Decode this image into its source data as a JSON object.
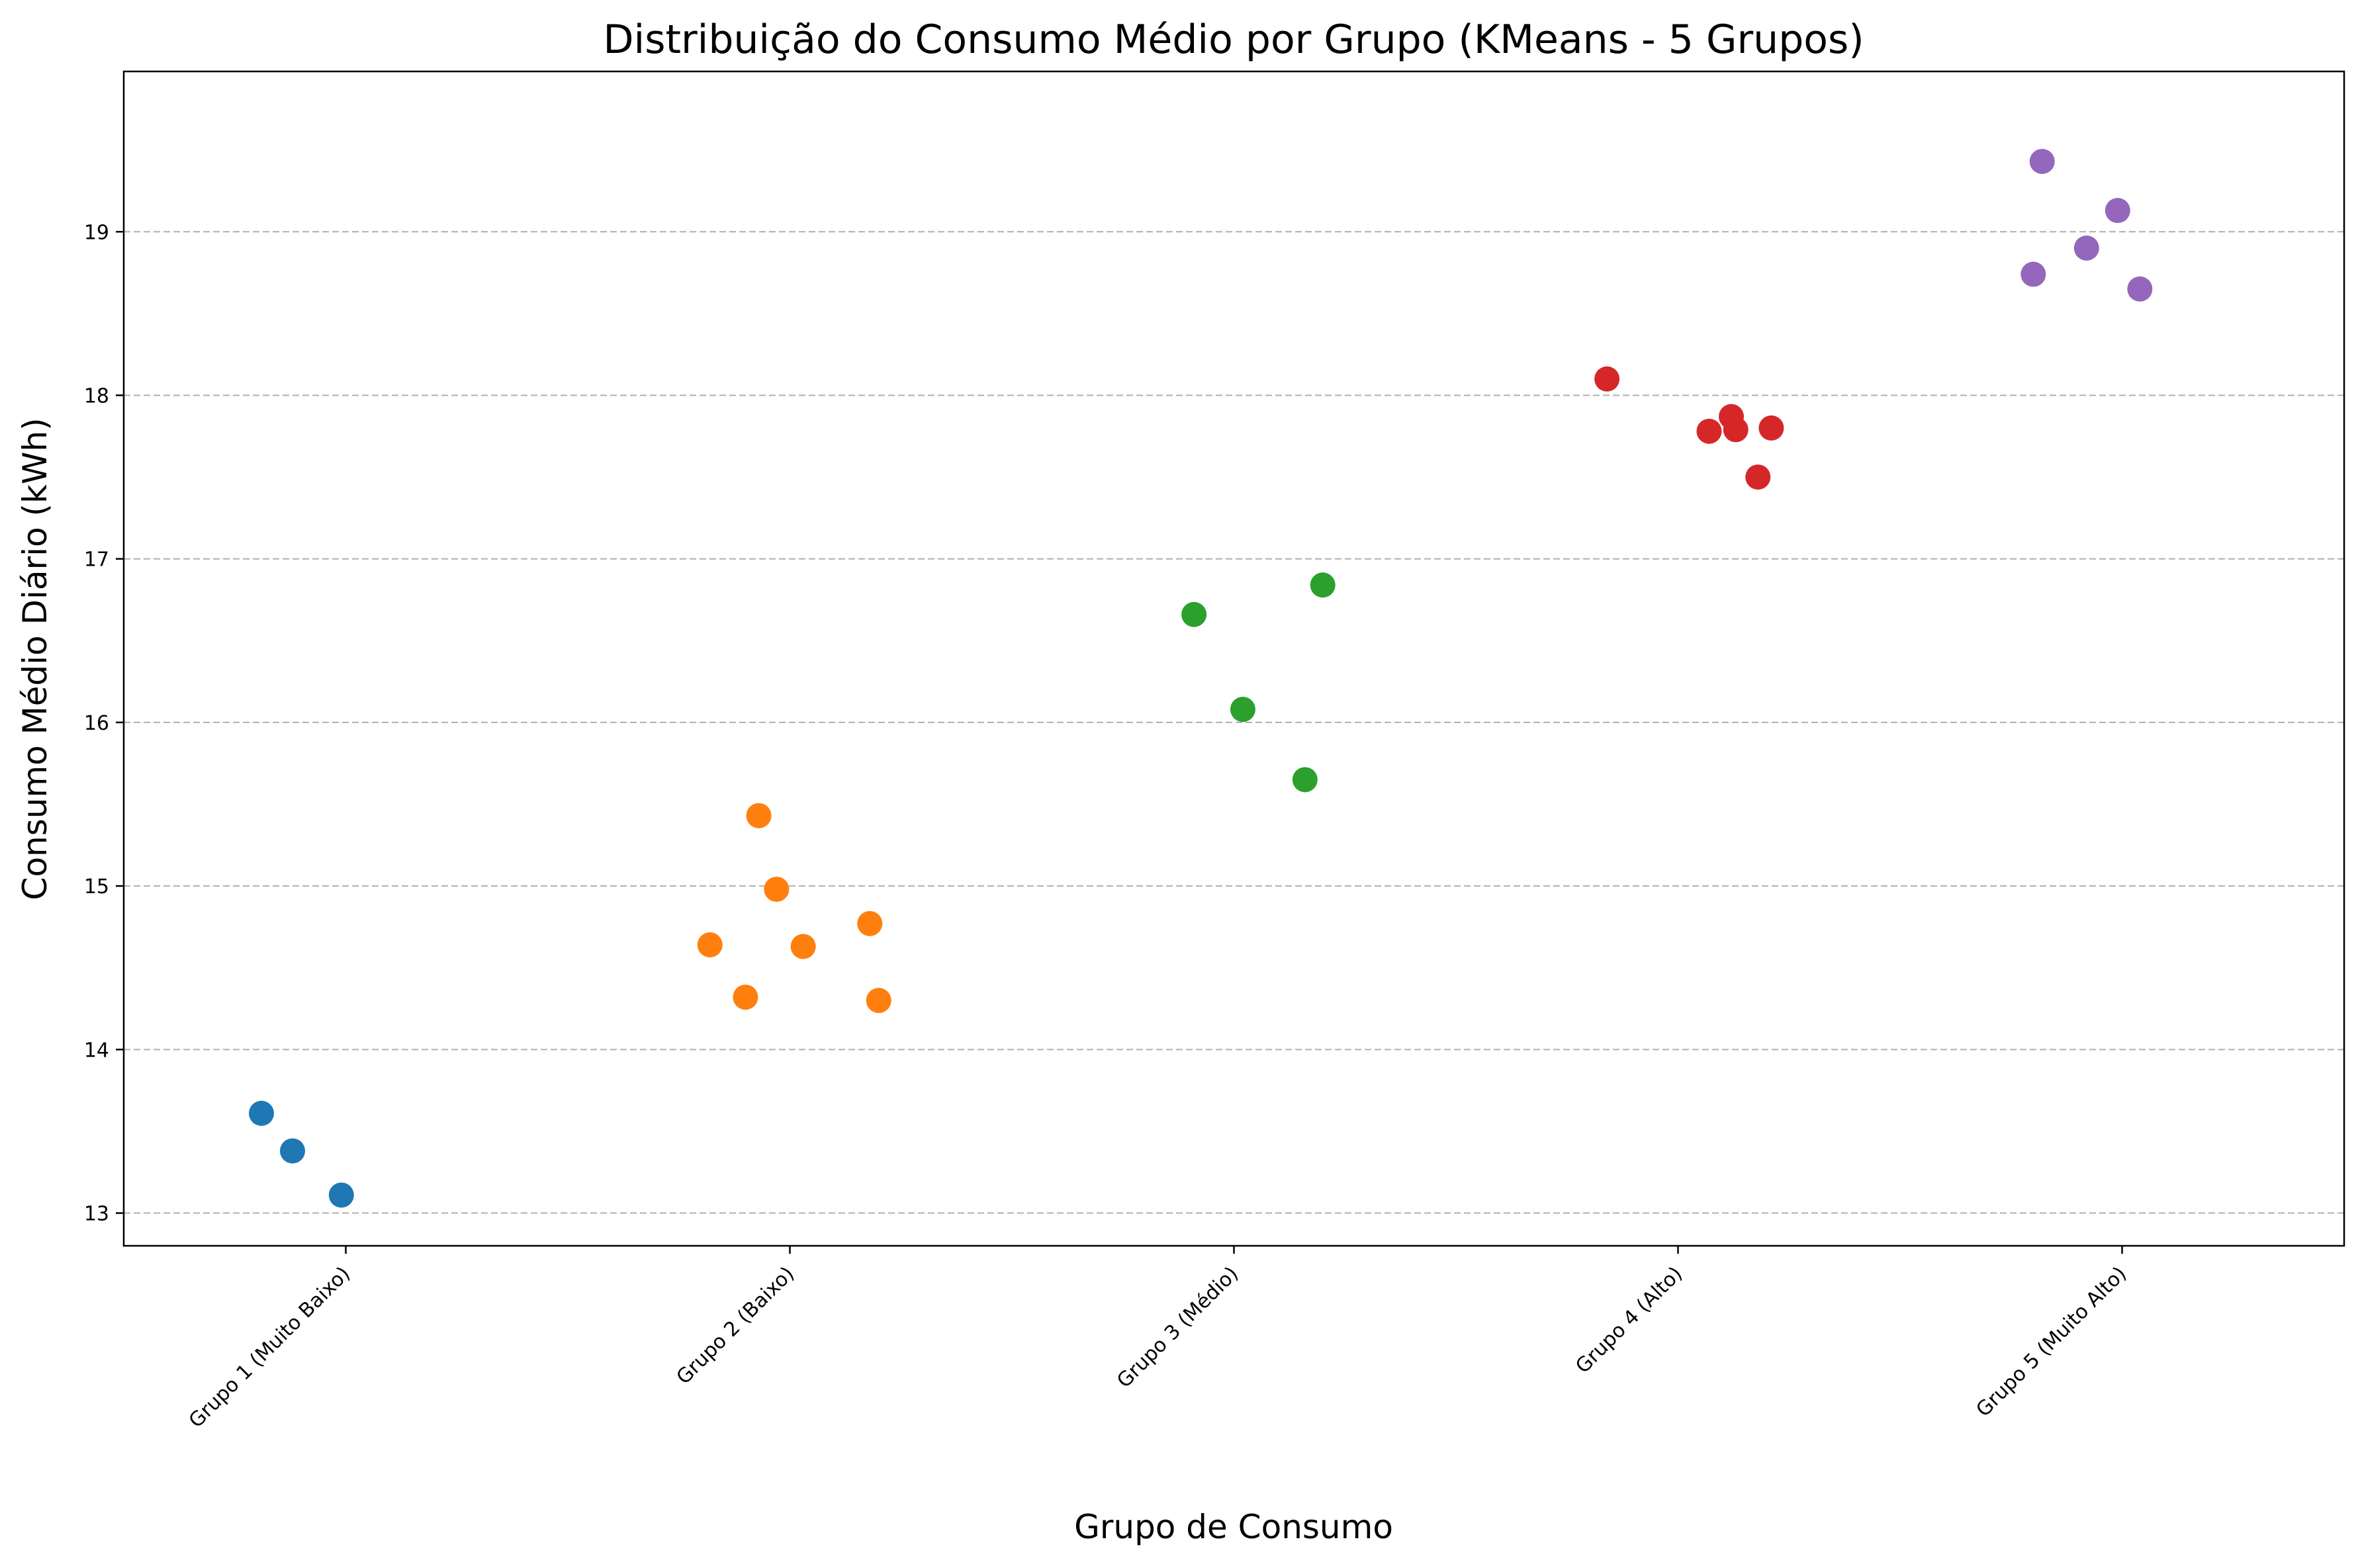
{
  "chart_data": {
    "type": "scatter",
    "title": "Distribuição do Consumo Médio por Grupo (KMeans - 5 Grupos)",
    "xlabel": "Grupo de Consumo",
    "ylabel": "Consumo Médio Diário (kWh)",
    "categories": [
      "Grupo 1 (Muito Baixo)",
      "Grupo 2 (Baixo)",
      "Grupo 3 (Médio)",
      "Grupo 4 (Alto)",
      "Grupo 5 (Muito Alto)"
    ],
    "ylim": [
      12.8,
      19.98
    ],
    "yticks": [
      13,
      14,
      15,
      16,
      17,
      18,
      19
    ],
    "grid": "y-dashed",
    "legend": "none",
    "series": [
      {
        "color": "#1f77b4",
        "points": [
          [
            -0.19,
            13.61
          ],
          [
            -0.12,
            13.38
          ],
          [
            -0.01,
            13.11
          ]
        ]
      },
      {
        "color": "#ff7f0e",
        "points": [
          [
            -0.18,
            14.64
          ],
          [
            -0.1,
            14.32
          ],
          [
            -0.07,
            15.43
          ],
          [
            -0.03,
            14.98
          ],
          [
            0.03,
            14.63
          ],
          [
            0.18,
            14.77
          ],
          [
            0.2,
            14.3
          ]
        ]
      },
      {
        "color": "#2ca02c",
        "points": [
          [
            -0.09,
            16.66
          ],
          [
            0.02,
            16.08
          ],
          [
            0.16,
            15.65
          ],
          [
            0.2,
            16.84
          ]
        ]
      },
      {
        "color": "#d62728",
        "points": [
          [
            -0.16,
            18.1
          ],
          [
            0.07,
            17.78
          ],
          [
            0.12,
            17.87
          ],
          [
            0.13,
            17.79
          ],
          [
            0.18,
            17.5
          ],
          [
            0.21,
            17.8
          ]
        ]
      },
      {
        "color": "#9467bd",
        "points": [
          [
            -0.2,
            18.74
          ],
          [
            -0.18,
            19.43
          ],
          [
            -0.08,
            18.9
          ],
          [
            -0.01,
            19.13
          ],
          [
            0.04,
            18.65
          ]
        ]
      }
    ]
  }
}
